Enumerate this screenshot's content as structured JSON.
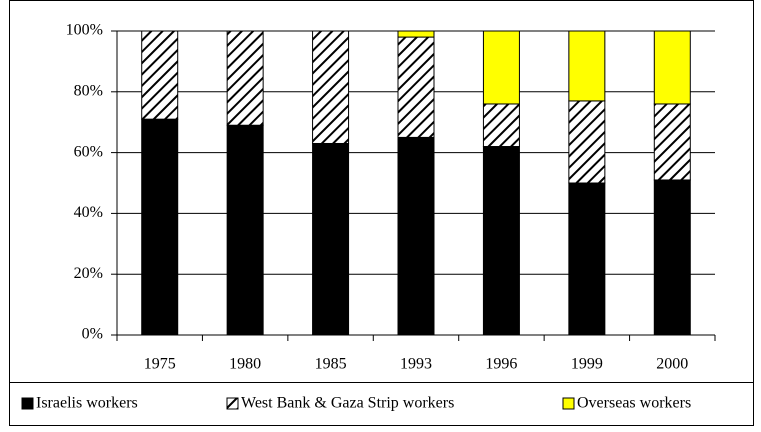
{
  "chart_data": {
    "type": "bar",
    "stacked": true,
    "categories": [
      "1975",
      "1980",
      "1985",
      "1993",
      "1996",
      "1999",
      "2000"
    ],
    "series": [
      {
        "name": "Israelis workers",
        "color": "#000000",
        "values": [
          71,
          69,
          63,
          65,
          62,
          50,
          51
        ]
      },
      {
        "name": "West Bank & Gaza Strip workers",
        "color": "#000000",
        "hatch": true,
        "values": [
          29,
          31,
          37,
          33,
          14,
          27,
          25
        ]
      },
      {
        "name": "Overseas workers",
        "color": "#ffff00",
        "values": [
          0,
          0,
          0,
          2,
          24,
          23,
          24
        ]
      }
    ],
    "ylim": [
      0,
      100
    ],
    "yticks": [
      {
        "value": 0,
        "label": "0%"
      },
      {
        "value": 20,
        "label": "20%"
      },
      {
        "value": 40,
        "label": "40%"
      },
      {
        "value": 60,
        "label": "60%"
      },
      {
        "value": 80,
        "label": "80%"
      },
      {
        "value": 100,
        "label": "100%"
      }
    ],
    "grid": true,
    "legend": "bottom"
  }
}
